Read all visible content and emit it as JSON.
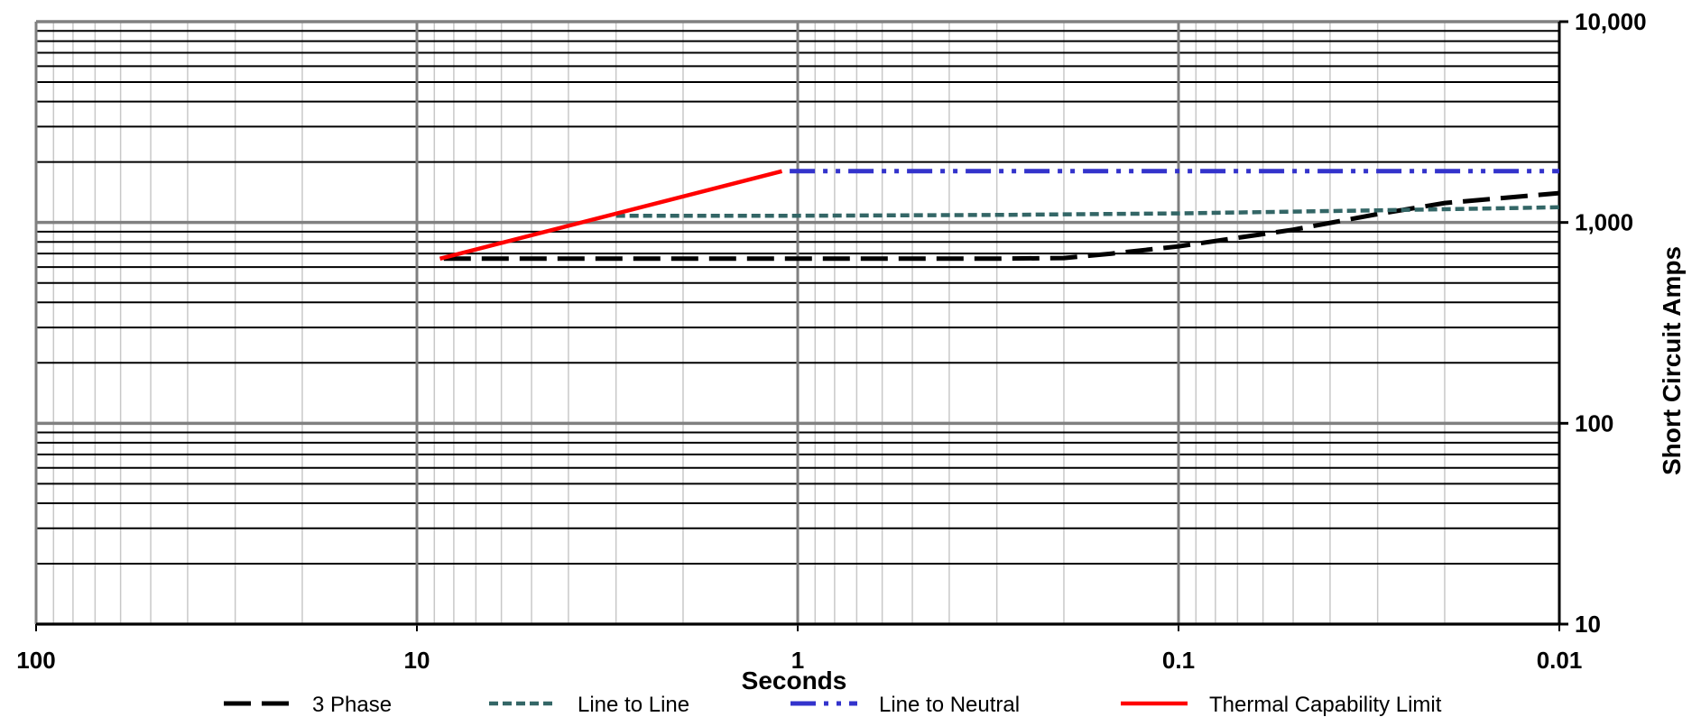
{
  "chart_data": {
    "type": "line",
    "xlabel": "Seconds",
    "ylabel": "Short Circuit Amps",
    "x_scale": "log",
    "x_reversed": true,
    "y_scale": "log",
    "xlim": [
      100,
      0.01
    ],
    "ylim": [
      10,
      10000
    ],
    "grid": true,
    "legend_position": "bottom",
    "x_tick_labels": [
      "100",
      "10",
      "1",
      "0.1",
      "0.01"
    ],
    "y_tick_labels": [
      "10",
      "100",
      "1,000",
      "10,000"
    ],
    "series": [
      {
        "name": "3 Phase",
        "color": "#000000",
        "dash": "long-dash",
        "x": [
          8.5,
          5,
          2,
          1,
          0.5,
          0.3,
          0.2,
          0.15,
          0.1,
          0.05,
          0.03,
          0.02,
          0.01
        ],
        "y": [
          660,
          660,
          660,
          660,
          660,
          660,
          665,
          700,
          760,
          920,
          1100,
          1250,
          1400
        ]
      },
      {
        "name": "Line to Line",
        "color": "#336666",
        "dash": "short-dash",
        "x": [
          3,
          1,
          0.3,
          0.1,
          0.03,
          0.01
        ],
        "y": [
          1080,
          1080,
          1090,
          1110,
          1150,
          1190
        ]
      },
      {
        "name": "Line to Neutral",
        "color": "#3333CC",
        "dash": "dash-dot-dot",
        "x": [
          1.05,
          0.3,
          0.1,
          0.03,
          0.01
        ],
        "y": [
          1800,
          1800,
          1800,
          1800,
          1800
        ]
      },
      {
        "name": "Thermal Capability Limit",
        "color": "#FF0000",
        "dash": "solid",
        "x": [
          8.7,
          1.1
        ],
        "y": [
          660,
          1800
        ]
      }
    ]
  }
}
